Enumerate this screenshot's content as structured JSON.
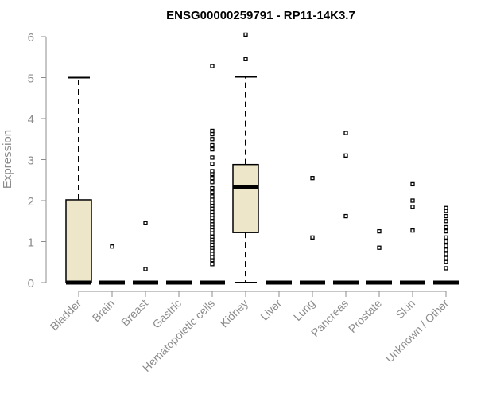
{
  "chart_data": {
    "type": "boxplot",
    "title": "ENSG00000259791 - RP11-14K3.7",
    "ylabel": "Expression",
    "xlabel": "",
    "ylim": [
      0,
      6
    ],
    "yticks": [
      0,
      1,
      2,
      3,
      4,
      5,
      6
    ],
    "grid": false,
    "colors": {
      "box_fill": "#ede6c9",
      "box_stroke": "#000000",
      "axis": "#8c8c8c",
      "tick_label": "#8c8c8c",
      "title": "#000000"
    },
    "categories": [
      "Bladder",
      "Brain",
      "Breast",
      "Gastric",
      "Hematopoietic cells",
      "Kidney",
      "Liver",
      "Lung",
      "Pancreas",
      "Prostate",
      "Skin",
      "Unknown / Other"
    ],
    "boxes": [
      {
        "category": "Bladder",
        "min": 0,
        "q1": 0,
        "median": 0,
        "q3": 2.02,
        "max": 5.0,
        "outliers": []
      },
      {
        "category": "Brain",
        "min": 0,
        "q1": 0,
        "median": 0,
        "q3": 0,
        "max": 0,
        "outliers": [
          0.88
        ]
      },
      {
        "category": "Breast",
        "min": 0,
        "q1": 0,
        "median": 0,
        "q3": 0,
        "max": 0,
        "outliers": [
          0.33,
          1.45
        ]
      },
      {
        "category": "Gastric",
        "min": 0,
        "q1": 0,
        "median": 0,
        "q3": 0,
        "max": 0,
        "outliers": []
      },
      {
        "category": "Hematopoietic cells",
        "min": 0,
        "q1": 0,
        "median": 0,
        "q3": 0,
        "max": 0,
        "outliers": [
          0.45,
          0.55,
          0.62,
          0.7,
          0.78,
          0.85,
          0.92,
          1.0,
          1.05,
          1.12,
          1.2,
          1.28,
          1.35,
          1.42,
          1.5,
          1.58,
          1.65,
          1.72,
          1.8,
          1.88,
          1.95,
          2.02,
          2.1,
          2.2,
          2.3,
          2.45,
          2.55,
          2.65,
          2.72,
          2.9,
          3.05,
          3.25,
          3.35,
          3.5,
          3.62,
          3.7,
          5.28
        ]
      },
      {
        "category": "Kidney",
        "min": 0,
        "q1": 1.22,
        "median": 2.32,
        "q3": 2.88,
        "max": 5.02,
        "outliers": [
          5.45,
          6.05
        ]
      },
      {
        "category": "Liver",
        "min": 0,
        "q1": 0,
        "median": 0,
        "q3": 0,
        "max": 0,
        "outliers": []
      },
      {
        "category": "Lung",
        "min": 0,
        "q1": 0,
        "median": 0,
        "q3": 0,
        "max": 0,
        "outliers": [
          1.1,
          2.55
        ]
      },
      {
        "category": "Pancreas",
        "min": 0,
        "q1": 0,
        "median": 0,
        "q3": 0,
        "max": 0,
        "outliers": [
          1.62,
          3.1,
          3.65
        ]
      },
      {
        "category": "Prostate",
        "min": 0,
        "q1": 0,
        "median": 0,
        "q3": 0,
        "max": 0,
        "outliers": [
          0.85,
          1.25
        ]
      },
      {
        "category": "Skin",
        "min": 0,
        "q1": 0,
        "median": 0,
        "q3": 0,
        "max": 0,
        "outliers": [
          1.27,
          1.85,
          2.0,
          2.4
        ]
      },
      {
        "category": "Unknown / Other",
        "min": 0,
        "q1": 0,
        "median": 0,
        "q3": 0,
        "max": 0,
        "outliers": [
          0.35,
          0.5,
          0.6,
          0.7,
          0.8,
          0.9,
          1.0,
          1.1,
          1.25,
          1.35,
          1.5,
          1.62,
          1.75,
          1.82
        ]
      }
    ]
  }
}
